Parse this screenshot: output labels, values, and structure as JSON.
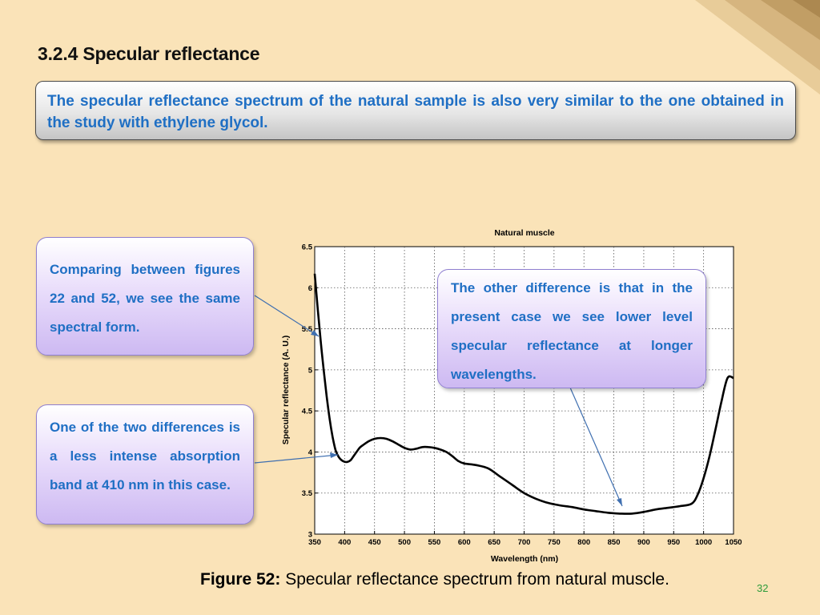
{
  "slide": {
    "section_title": "3.2.4 Specular reflectance",
    "intro_text": "The specular reflectance spectrum of the natural sample is also very similar to the one obtained in the study with ethylene glycol.",
    "callouts": [
      "Comparing between figures 22 and 52, we see the same spectral form.",
      "One of the two differences is a less intense absorption band at 410 nm in this case.",
      "The other difference is that in the present case we see lower level specular reflectance at longer wavelengths."
    ],
    "caption_label": "Figure 52:",
    "caption_text": "Specular reflectance spectrum from natural muscle.",
    "page_number": "32"
  },
  "colors": {
    "background": "#fae3b8",
    "callout_text": "#1f6fc4",
    "page_number": "#2e9c3b",
    "arrow": "#3f6fb0"
  },
  "chart_data": {
    "type": "line",
    "title": "Natural muscle",
    "xlabel": "Wavelength (nm)",
    "ylabel": "Specular reflectance (A. U.)",
    "xlim": [
      350,
      1050
    ],
    "ylim": [
      3,
      6.5
    ],
    "xticks": [
      350,
      400,
      450,
      500,
      550,
      600,
      650,
      700,
      750,
      800,
      850,
      900,
      950,
      1000,
      1050
    ],
    "yticks": [
      "3",
      "3.5",
      "4",
      "4.5",
      "5",
      "5.5",
      "6",
      "6.5"
    ],
    "grid": true,
    "series": [
      {
        "x": [
          350,
          355,
          360,
          365,
          370,
          375,
          380,
          385,
          390,
          395,
          400,
          405,
          410,
          415,
          420,
          425,
          430,
          440,
          450,
          460,
          470,
          480,
          490,
          500,
          510,
          520,
          530,
          540,
          550,
          560,
          570,
          580,
          590,
          600,
          620,
          640,
          660,
          680,
          700,
          720,
          740,
          760,
          780,
          800,
          820,
          840,
          860,
          880,
          900,
          920,
          940,
          960,
          980,
          990,
          1000,
          1010,
          1020,
          1030,
          1040,
          1050
        ],
        "y": [
          6.17,
          5.75,
          5.35,
          5.0,
          4.68,
          4.4,
          4.18,
          4.02,
          3.94,
          3.9,
          3.88,
          3.88,
          3.9,
          3.95,
          4.0,
          4.05,
          4.08,
          4.13,
          4.16,
          4.17,
          4.16,
          4.13,
          4.09,
          4.05,
          4.03,
          4.04,
          4.06,
          4.06,
          4.05,
          4.03,
          4.0,
          3.95,
          3.89,
          3.86,
          3.84,
          3.8,
          3.7,
          3.6,
          3.5,
          3.43,
          3.38,
          3.35,
          3.33,
          3.3,
          3.28,
          3.26,
          3.25,
          3.25,
          3.27,
          3.3,
          3.32,
          3.34,
          3.37,
          3.48,
          3.68,
          3.95,
          4.28,
          4.62,
          4.9,
          4.9
        ]
      }
    ]
  }
}
